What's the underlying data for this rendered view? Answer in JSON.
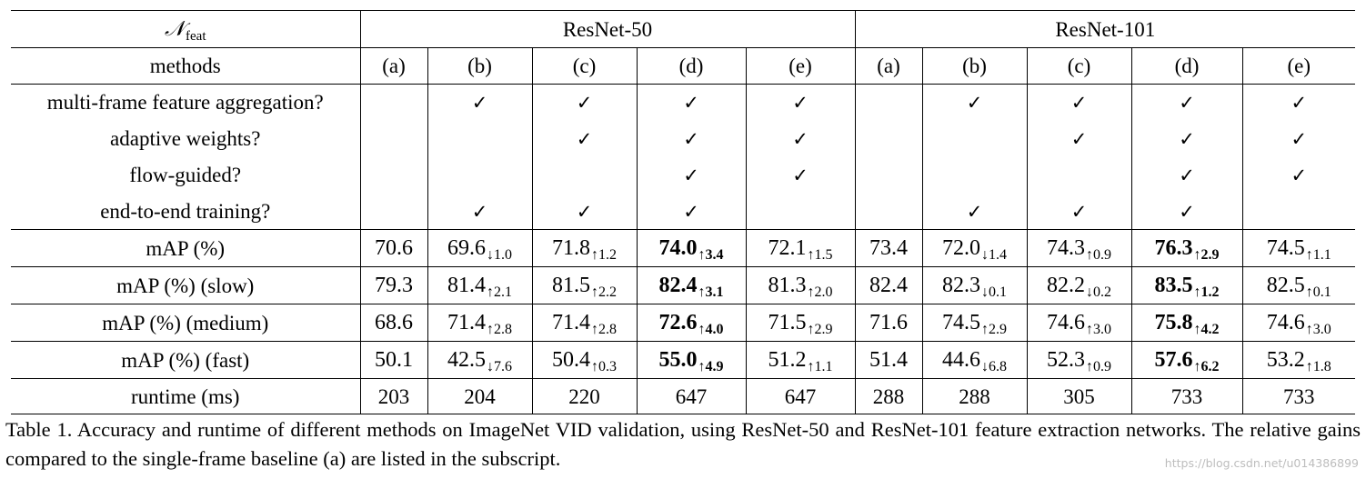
{
  "header": {
    "nfeat_symbol": "𝒩",
    "nfeat_sub": "feat",
    "groups": [
      "ResNet-50",
      "ResNet-101"
    ]
  },
  "methods_label": "methods",
  "methods": [
    "(a)",
    "(b)",
    "(c)",
    "(d)",
    "(e)",
    "(a)",
    "(b)",
    "(c)",
    "(d)",
    "(e)"
  ],
  "check_symbol": "✓",
  "flags": [
    {
      "label": "multi-frame feature aggregation?",
      "checks": [
        false,
        true,
        true,
        true,
        true,
        false,
        true,
        true,
        true,
        true
      ]
    },
    {
      "label": "adaptive weights?",
      "checks": [
        false,
        false,
        true,
        true,
        true,
        false,
        false,
        true,
        true,
        true
      ]
    },
    {
      "label": "flow-guided?",
      "checks": [
        false,
        false,
        false,
        true,
        true,
        false,
        false,
        false,
        true,
        true
      ]
    },
    {
      "label": "end-to-end training?",
      "checks": [
        false,
        true,
        true,
        true,
        false,
        false,
        true,
        true,
        true,
        false
      ]
    }
  ],
  "metrics": [
    {
      "label": "mAP (%)",
      "cells": [
        {
          "v": "70.6",
          "s": ""
        },
        {
          "v": "69.6",
          "s": "↓1.0"
        },
        {
          "v": "71.8",
          "s": "↑1.2"
        },
        {
          "v": "74.0",
          "s": "↑3.4",
          "best": true
        },
        {
          "v": "72.1",
          "s": "↑1.5"
        },
        {
          "v": "73.4",
          "s": ""
        },
        {
          "v": "72.0",
          "s": "↓1.4"
        },
        {
          "v": "74.3",
          "s": "↑0.9"
        },
        {
          "v": "76.3",
          "s": "↑2.9",
          "best": true
        },
        {
          "v": "74.5",
          "s": "↑1.1"
        }
      ]
    },
    {
      "label": "mAP (%) (slow)",
      "cells": [
        {
          "v": "79.3",
          "s": ""
        },
        {
          "v": "81.4",
          "s": "↑2.1"
        },
        {
          "v": "81.5",
          "s": "↑2.2"
        },
        {
          "v": "82.4",
          "s": "↑3.1",
          "best": true
        },
        {
          "v": "81.3",
          "s": "↑2.0"
        },
        {
          "v": "82.4",
          "s": ""
        },
        {
          "v": "82.3",
          "s": "↓0.1"
        },
        {
          "v": "82.2",
          "s": "↓0.2"
        },
        {
          "v": "83.5",
          "s": "↑1.2",
          "best": true
        },
        {
          "v": "82.5",
          "s": "↑0.1"
        }
      ]
    },
    {
      "label": "mAP (%) (medium)",
      "cells": [
        {
          "v": "68.6",
          "s": ""
        },
        {
          "v": "71.4",
          "s": "↑2.8"
        },
        {
          "v": "71.4",
          "s": "↑2.8"
        },
        {
          "v": "72.6",
          "s": "↑4.0",
          "best": true
        },
        {
          "v": "71.5",
          "s": "↑2.9"
        },
        {
          "v": "71.6",
          "s": ""
        },
        {
          "v": "74.5",
          "s": "↑2.9"
        },
        {
          "v": "74.6",
          "s": "↑3.0"
        },
        {
          "v": "75.8",
          "s": "↑4.2",
          "best": true
        },
        {
          "v": "74.6",
          "s": "↑3.0"
        }
      ]
    },
    {
      "label": "mAP (%) (fast)",
      "cells": [
        {
          "v": "50.1",
          "s": ""
        },
        {
          "v": "42.5",
          "s": "↓7.6"
        },
        {
          "v": "50.4",
          "s": "↑0.3"
        },
        {
          "v": "55.0",
          "s": "↑4.9",
          "best": true
        },
        {
          "v": "51.2",
          "s": "↑1.1"
        },
        {
          "v": "51.4",
          "s": ""
        },
        {
          "v": "44.6",
          "s": "↓6.8"
        },
        {
          "v": "52.3",
          "s": "↑0.9"
        },
        {
          "v": "57.6",
          "s": "↑6.2",
          "best": true
        },
        {
          "v": "53.2",
          "s": "↑1.8"
        }
      ]
    }
  ],
  "runtime": {
    "label": "runtime (ms)",
    "values": [
      "203",
      "204",
      "220",
      "647",
      "647",
      "288",
      "288",
      "305",
      "733",
      "733"
    ]
  },
  "caption": "Table 1. Accuracy and runtime of different methods on ImageNet VID validation, using ResNet-50 and ResNet-101 feature extraction networks. The relative gains compared to the single-frame baseline (a) are listed in the subscript.",
  "watermark": "https://blog.csdn.net/u014386899"
}
